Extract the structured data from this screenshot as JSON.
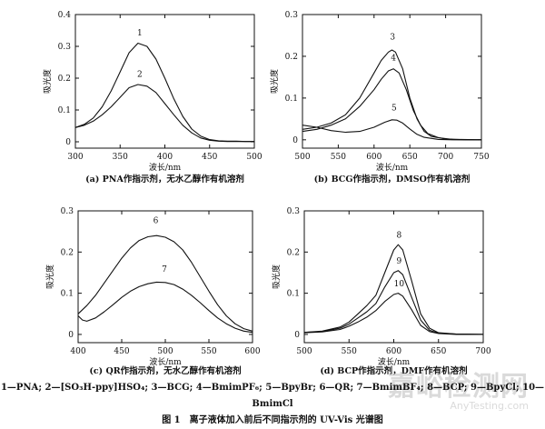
{
  "chart_data": [
    {
      "type": "line",
      "panel": "a",
      "title": "(a) PNA作指示剂，无水乙醇作有机溶剂",
      "xlabel": "波长/nm",
      "ylabel": "吸光度",
      "xlim": [
        300,
        500
      ],
      "ylim": [
        -0.02,
        0.4
      ],
      "xticks": [
        300,
        350,
        400,
        450,
        500
      ],
      "yticks": [
        0,
        0.1,
        0.2,
        0.3,
        0.4
      ],
      "ytick_labels": [
        "0",
        "0.1",
        "0.2",
        "0.3",
        "0.4"
      ],
      "series": [
        {
          "name": "1",
          "x": [
            300,
            310,
            320,
            330,
            340,
            350,
            360,
            370,
            380,
            390,
            400,
            410,
            420,
            430,
            440,
            450,
            460,
            470,
            480,
            490,
            500
          ],
          "y": [
            0.045,
            0.055,
            0.075,
            0.11,
            0.16,
            0.22,
            0.28,
            0.31,
            0.3,
            0.26,
            0.2,
            0.135,
            0.08,
            0.04,
            0.018,
            0.007,
            0.003,
            0.002,
            0.002,
            0.001,
            0.001
          ]
        },
        {
          "name": "2",
          "x": [
            300,
            310,
            320,
            330,
            340,
            350,
            360,
            370,
            380,
            390,
            400,
            410,
            420,
            430,
            440,
            450,
            460,
            470,
            480,
            490,
            500
          ],
          "y": [
            0.045,
            0.052,
            0.065,
            0.085,
            0.11,
            0.14,
            0.17,
            0.18,
            0.175,
            0.155,
            0.12,
            0.085,
            0.052,
            0.028,
            0.012,
            0.005,
            0.002,
            0.001,
            0.001,
            0.001,
            0.001
          ]
        }
      ],
      "labels": [
        {
          "text": "1",
          "x": 372,
          "y": 0.335
        },
        {
          "text": "2",
          "x": 372,
          "y": 0.205
        }
      ]
    },
    {
      "type": "line",
      "panel": "b",
      "title": "(b) BCG作指示剂，DMSO作有机溶剂",
      "xlabel": "波长/nm",
      "ylabel": "吸光度",
      "xlim": [
        500,
        750
      ],
      "ylim": [
        -0.02,
        0.3
      ],
      "xticks": [
        500,
        550,
        600,
        650,
        700,
        750
      ],
      "yticks": [
        0,
        0.1,
        0.2,
        0.3
      ],
      "ytick_labels": [
        "0",
        "0.1",
        "0.2",
        "0.3"
      ],
      "series": [
        {
          "name": "3",
          "x": [
            500,
            520,
            540,
            560,
            580,
            600,
            610,
            620,
            625,
            630,
            640,
            650,
            660,
            670,
            680,
            700,
            720,
            750
          ],
          "y": [
            0.025,
            0.03,
            0.04,
            0.06,
            0.1,
            0.16,
            0.19,
            0.21,
            0.215,
            0.21,
            0.17,
            0.1,
            0.05,
            0.02,
            0.008,
            0.002,
            0.001,
            0.0
          ]
        },
        {
          "name": "4",
          "x": [
            500,
            520,
            540,
            560,
            580,
            600,
            610,
            620,
            627,
            635,
            645,
            655,
            665,
            675,
            690,
            710,
            730,
            750
          ],
          "y": [
            0.02,
            0.025,
            0.035,
            0.05,
            0.08,
            0.12,
            0.145,
            0.165,
            0.17,
            0.16,
            0.12,
            0.07,
            0.035,
            0.015,
            0.005,
            0.001,
            0.0,
            0.0
          ]
        },
        {
          "name": "5",
          "x": [
            500,
            520,
            540,
            560,
            580,
            600,
            615,
            625,
            632,
            640,
            650,
            660,
            670,
            690,
            710,
            750
          ],
          "y": [
            0.035,
            0.03,
            0.022,
            0.018,
            0.02,
            0.03,
            0.042,
            0.048,
            0.047,
            0.04,
            0.026,
            0.013,
            0.006,
            0.001,
            0.0,
            0.0
          ]
        }
      ],
      "labels": [
        {
          "text": "3",
          "x": 626,
          "y": 0.24
        },
        {
          "text": "4",
          "x": 627,
          "y": 0.19
        },
        {
          "text": "5",
          "x": 628,
          "y": 0.07
        }
      ]
    },
    {
      "type": "line",
      "panel": "c",
      "title": "(c) QR作指示剂，无水乙醇作有机溶剂",
      "xlabel": "波长/nm",
      "ylabel": "吸光度",
      "xlim": [
        400,
        600
      ],
      "ylim": [
        -0.02,
        0.3
      ],
      "xticks": [
        400,
        450,
        500,
        550,
        600
      ],
      "yticks": [
        0,
        0.1,
        0.2,
        0.3
      ],
      "ytick_labels": [
        "0",
        "0.1",
        "0.2",
        "0.3"
      ],
      "series": [
        {
          "name": "6",
          "x": [
            400,
            410,
            420,
            430,
            440,
            450,
            460,
            470,
            480,
            490,
            500,
            510,
            520,
            530,
            540,
            550,
            560,
            570,
            580,
            590,
            600
          ],
          "y": [
            0.05,
            0.07,
            0.095,
            0.125,
            0.155,
            0.185,
            0.21,
            0.228,
            0.237,
            0.24,
            0.236,
            0.225,
            0.205,
            0.175,
            0.14,
            0.105,
            0.072,
            0.045,
            0.026,
            0.014,
            0.008
          ]
        },
        {
          "name": "7",
          "x": [
            400,
            405,
            410,
            420,
            430,
            440,
            450,
            460,
            470,
            480,
            490,
            500,
            510,
            520,
            530,
            540,
            550,
            560,
            570,
            580,
            590,
            600
          ],
          "y": [
            0.045,
            0.035,
            0.032,
            0.04,
            0.055,
            0.072,
            0.09,
            0.105,
            0.116,
            0.123,
            0.127,
            0.126,
            0.121,
            0.11,
            0.095,
            0.077,
            0.058,
            0.04,
            0.026,
            0.015,
            0.008,
            0.005
          ]
        }
      ],
      "labels": [
        {
          "text": "6",
          "x": 489,
          "y": 0.27
        },
        {
          "text": "7",
          "x": 499,
          "y": 0.152
        }
      ]
    },
    {
      "type": "line",
      "panel": "d",
      "title": "(d) BCP作指示剂，DMF作有机溶剂",
      "xlabel": "波长/nm",
      "ylabel": "吸光度",
      "xlim": [
        500,
        700
      ],
      "ylim": [
        -0.02,
        0.3
      ],
      "xticks": [
        500,
        550,
        600,
        650,
        700
      ],
      "yticks": [
        0,
        0.1,
        0.2,
        0.3
      ],
      "ytick_labels": [
        "0",
        "0.1",
        "0.2",
        "0.3"
      ],
      "series": [
        {
          "name": "8",
          "x": [
            500,
            520,
            540,
            550,
            560,
            570,
            580,
            590,
            600,
            605,
            610,
            620,
            630,
            640,
            650,
            670,
            700
          ],
          "y": [
            0.005,
            0.008,
            0.018,
            0.03,
            0.05,
            0.07,
            0.095,
            0.15,
            0.205,
            0.218,
            0.205,
            0.13,
            0.05,
            0.015,
            0.004,
            0.001,
            0.0
          ]
        },
        {
          "name": "9",
          "x": [
            500,
            520,
            540,
            550,
            560,
            570,
            580,
            590,
            600,
            605,
            610,
            620,
            630,
            640,
            650,
            670,
            700
          ],
          "y": [
            0.005,
            0.007,
            0.015,
            0.025,
            0.04,
            0.055,
            0.075,
            0.115,
            0.15,
            0.155,
            0.145,
            0.09,
            0.035,
            0.01,
            0.003,
            0.001,
            0.0
          ]
        },
        {
          "name": "10",
          "x": [
            500,
            520,
            540,
            550,
            560,
            570,
            580,
            590,
            600,
            605,
            610,
            620,
            630,
            640,
            650,
            670,
            700
          ],
          "y": [
            0.004,
            0.006,
            0.012,
            0.02,
            0.03,
            0.042,
            0.058,
            0.08,
            0.097,
            0.1,
            0.093,
            0.06,
            0.022,
            0.007,
            0.002,
            0.0,
            0.0
          ]
        }
      ],
      "labels": [
        {
          "text": "8",
          "x": 606,
          "y": 0.235
        },
        {
          "text": "9",
          "x": 606,
          "y": 0.172
        },
        {
          "text": "10",
          "x": 606,
          "y": 0.117
        }
      ]
    }
  ],
  "footer": {
    "legend": "1—PNA; 2—[SO₃H-ppy]HSO₄; 3—BCG; 4—BmimPF₆; 5—BpyBr; 6—QR; 7—BmimBF₄; 8—BCP; 9—BpyCl; 10—BmimCl",
    "caption": "图 1　离子液体加入前后不同指示剂的 UV-Vis 光谱图"
  },
  "watermark": {
    "main": "嘉峪检测网",
    "sub": "AnyTesting.com"
  }
}
